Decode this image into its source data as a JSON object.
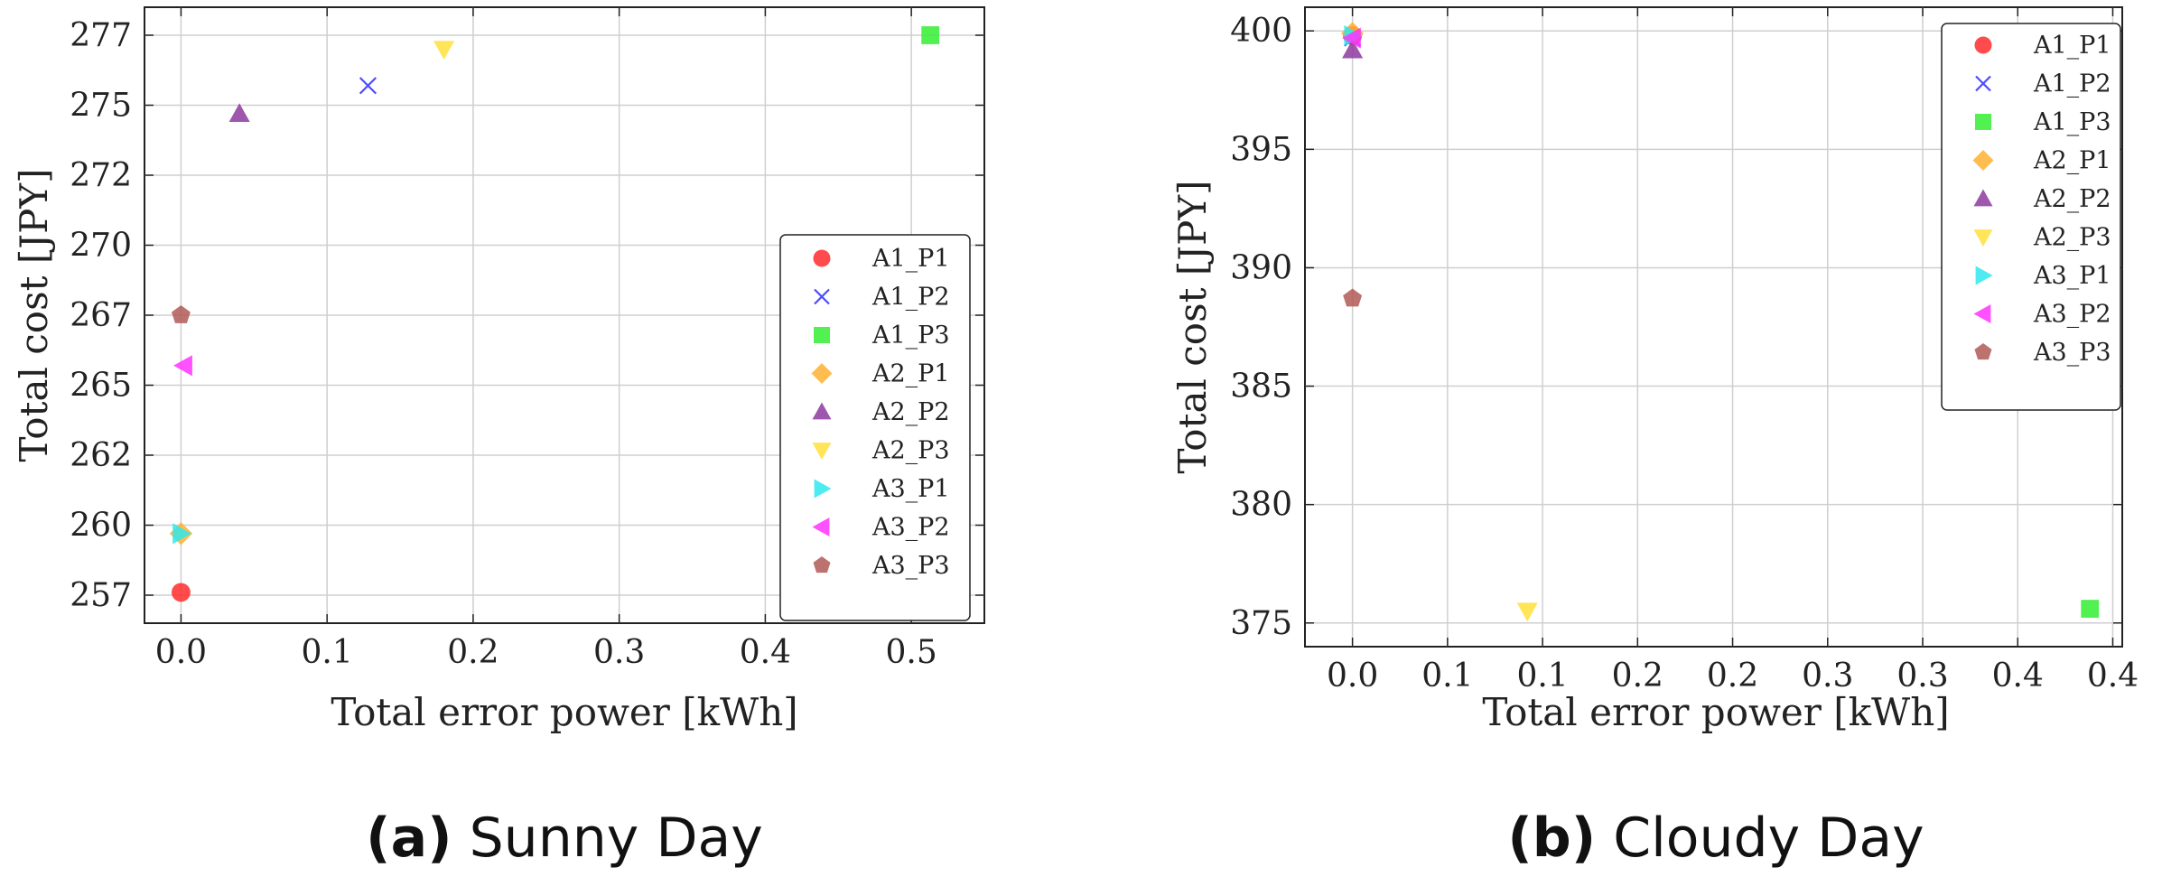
{
  "figure": {
    "panels_count": 2
  },
  "series_styles": [
    {
      "name": "A1_P1",
      "color": "#ff2b2b",
      "marker": "circle"
    },
    {
      "name": "A1_P2",
      "color": "#4b4bff",
      "marker": "x"
    },
    {
      "name": "A1_P3",
      "color": "#33ee33",
      "marker": "square"
    },
    {
      "name": "A2_P1",
      "color": "#ffb233",
      "marker": "diamond"
    },
    {
      "name": "A2_P2",
      "color": "#8e3aa0",
      "marker": "triangle-up"
    },
    {
      "name": "A2_P3",
      "color": "#ffe03a",
      "marker": "triangle-down"
    },
    {
      "name": "A3_P1",
      "color": "#2fe8ee",
      "marker": "triangle-right"
    },
    {
      "name": "A3_P2",
      "color": "#ff33ff",
      "marker": "triangle-left"
    },
    {
      "name": "A3_P3",
      "color": "#b05a56",
      "marker": "pentagon"
    }
  ],
  "chart_data": [
    {
      "type": "scatter",
      "id": "sunny",
      "caption_letter": "(a)",
      "caption_text": " Sunny Day",
      "xlabel": "Total error power [kWh]",
      "ylabel": "Total cost [JPY]",
      "xlim": [
        -0.025,
        0.55
      ],
      "ylim": [
        256.0,
        278.0
      ],
      "xticks": [
        0.0,
        0.1,
        0.2,
        0.3,
        0.4,
        0.5
      ],
      "xtick_labels": [
        "0.0",
        "0.1",
        "0.2",
        "0.3",
        "0.4",
        "0.5"
      ],
      "yticks": [
        257.0,
        259.5,
        262.0,
        264.5,
        267.0,
        269.5,
        272.0,
        274.5,
        277.0
      ],
      "ytick_labels": [
        "257",
        "260",
        "262",
        "265",
        "267",
        "270",
        "272",
        "275",
        "277"
      ],
      "grid": true,
      "legend_position": "lower-right",
      "series": [
        {
          "name": "A1_P1",
          "x": 0.0,
          "y": 257.1
        },
        {
          "name": "A1_P2",
          "x": 0.128,
          "y": 275.2
        },
        {
          "name": "A1_P3",
          "x": 0.513,
          "y": 277.0
        },
        {
          "name": "A2_P1",
          "x": 0.0,
          "y": 259.2
        },
        {
          "name": "A2_P2",
          "x": 0.04,
          "y": 274.2
        },
        {
          "name": "A2_P3",
          "x": 0.18,
          "y": 276.5
        },
        {
          "name": "A3_P1",
          "x": 0.0,
          "y": 259.2
        },
        {
          "name": "A3_P2",
          "x": 0.002,
          "y": 265.2
        },
        {
          "name": "A3_P3",
          "x": 0.0,
          "y": 267.0
        }
      ]
    },
    {
      "type": "scatter",
      "id": "cloudy",
      "caption_letter": "(b)",
      "caption_text": " Cloudy Day",
      "xlabel": "Total error power [kWh]",
      "ylabel": "Total cost [JPY]",
      "xlim": [
        -0.025,
        0.405
      ],
      "ylim": [
        374.0,
        401.0
      ],
      "xticks": [
        0.0,
        0.05,
        0.1,
        0.15,
        0.2,
        0.25,
        0.3,
        0.35,
        0.4
      ],
      "xtick_labels": [
        "0.0",
        "0.1",
        "0.1",
        "0.2",
        "0.2",
        "0.3",
        "0.3",
        "0.4",
        "0.4"
      ],
      "yticks": [
        375,
        380,
        385,
        390,
        395,
        400
      ],
      "ytick_labels": [
        "375",
        "380",
        "385",
        "390",
        "395",
        "400"
      ],
      "grid": true,
      "legend_position": "upper-right",
      "series": [
        {
          "name": "A1_P1",
          "x": 0.0,
          "y": 399.8
        },
        {
          "name": "A1_P2",
          "x": 0.0,
          "y": 399.7
        },
        {
          "name": "A1_P3",
          "x": 0.388,
          "y": 375.6
        },
        {
          "name": "A2_P1",
          "x": 0.0,
          "y": 399.9
        },
        {
          "name": "A2_P2",
          "x": 0.0,
          "y": 399.2
        },
        {
          "name": "A2_P3",
          "x": 0.092,
          "y": 375.5
        },
        {
          "name": "A3_P1",
          "x": 0.0,
          "y": 399.8
        },
        {
          "name": "A3_P2",
          "x": 0.0,
          "y": 399.7
        },
        {
          "name": "A3_P3",
          "x": 0.0,
          "y": 388.7
        }
      ]
    }
  ]
}
